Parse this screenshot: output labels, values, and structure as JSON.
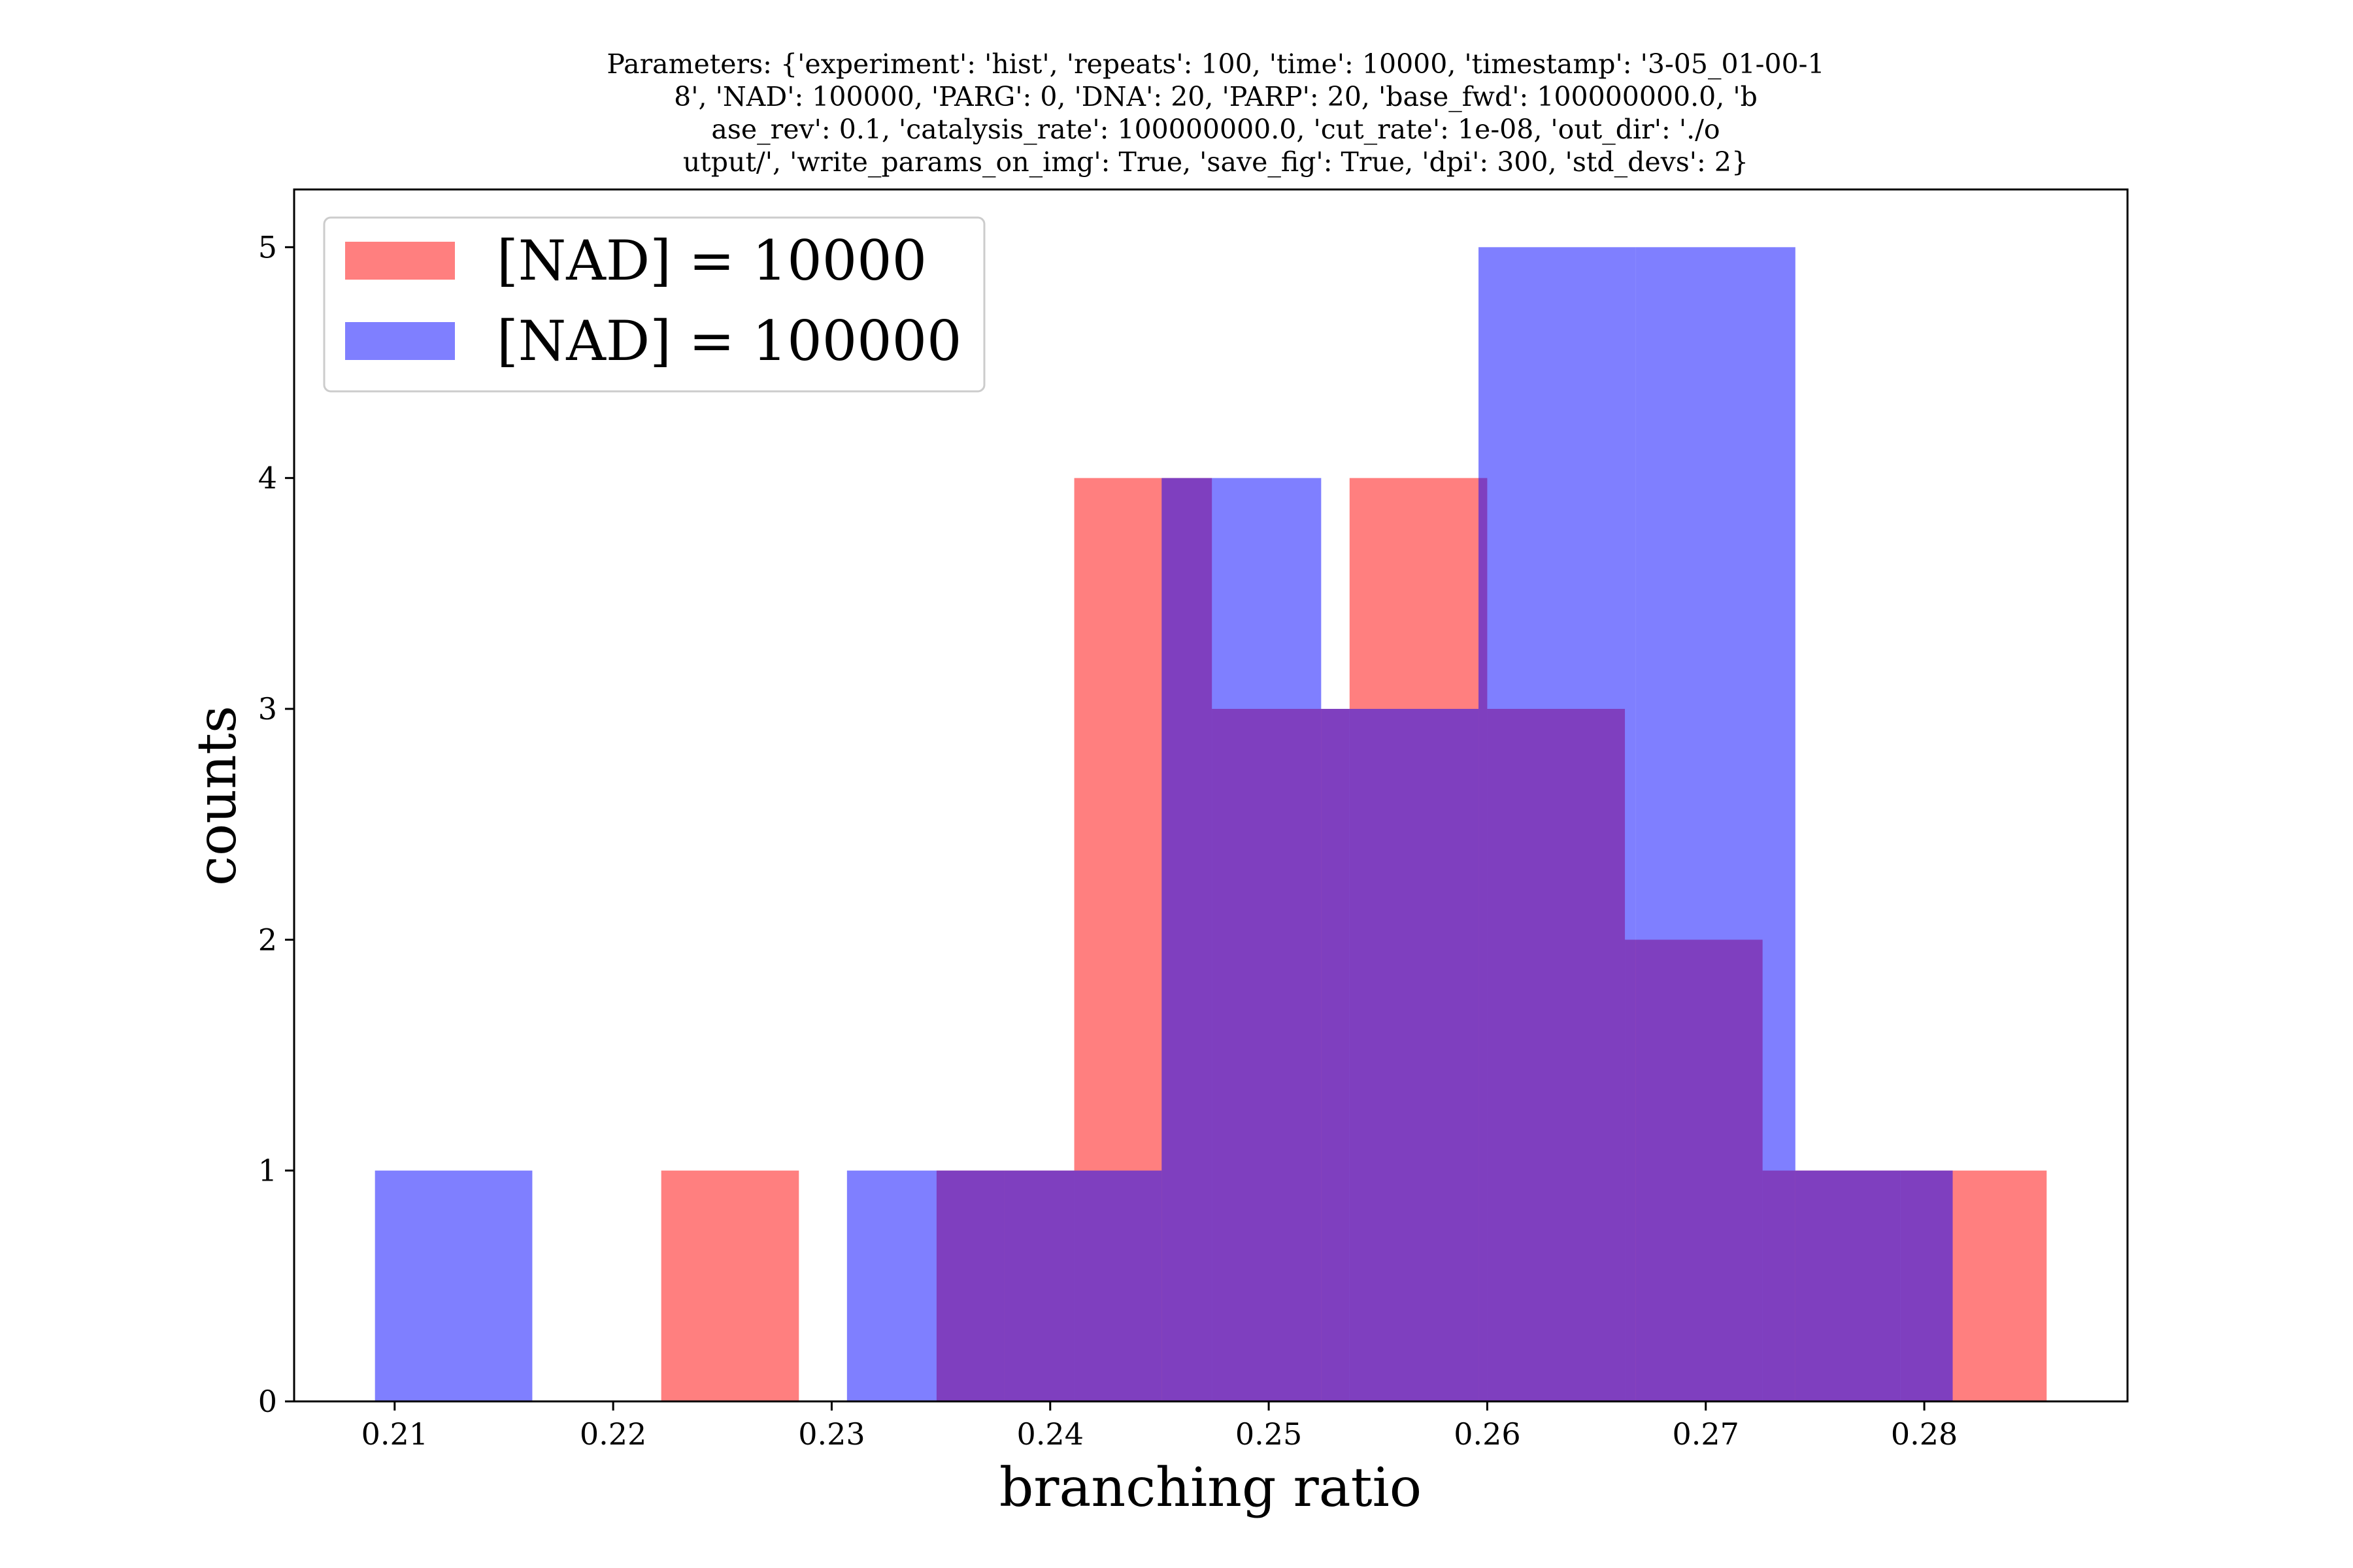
{
  "chart_data": {
    "type": "bar",
    "histogram": true,
    "title_lines": [
      "Parameters: {'experiment': 'hist', 'repeats': 100, 'time': 10000, 'timestamp': '3-05_01-00-1",
      "8', 'NAD': 100000, 'PARG': 0, 'DNA': 20, 'PARP': 20, 'base_fwd': 100000000.0, 'b",
      "ase_rev': 0.1, 'catalysis_rate': 100000000.0, 'cut_rate': 1e-08, 'out_dir': './o",
      "utput/', 'write_params_on_img': True, 'save_fig': True, 'dpi': 300, 'std_devs': 2}"
    ],
    "xlabel": "branching ratio",
    "ylabel": "counts",
    "xlim": [
      0.2054,
      0.2893
    ],
    "ylim": [
      0,
      5.25
    ],
    "xticks": [
      0.21,
      0.22,
      0.23,
      0.24,
      0.25,
      0.26,
      0.27,
      0.28
    ],
    "xtick_labels": [
      "0.21",
      "0.22",
      "0.23",
      "0.24",
      "0.25",
      "0.26",
      "0.27",
      "0.28"
    ],
    "yticks": [
      0,
      1,
      2,
      3,
      4,
      5
    ],
    "ytick_labels": [
      "0",
      "1",
      "2",
      "3",
      "4",
      "5"
    ],
    "legend_position": "upper-left",
    "grid": false,
    "series": [
      {
        "name": "[NAD] = 10000",
        "color": "#ff0000",
        "alpha": 0.5,
        "bin_edges": [
          0.2159,
          0.2222,
          0.2285,
          0.2348,
          0.2411,
          0.2474,
          0.2537,
          0.26,
          0.2663,
          0.2726,
          0.2789,
          0.2856
        ],
        "counts": [
          0,
          1,
          0,
          1,
          4,
          3,
          4,
          3,
          2,
          1,
          1
        ]
      },
      {
        "name": "[NAD] = 100000",
        "color": "#0000ff",
        "alpha": 0.5,
        "bin_edges": [
          0.2091,
          0.2163,
          0.2235,
          0.2307,
          0.2379,
          0.2451,
          0.2524,
          0.2596,
          0.2668,
          0.2741,
          0.2813
        ],
        "counts": [
          1,
          0,
          0,
          1,
          1,
          4,
          3,
          5,
          5,
          1
        ]
      }
    ]
  }
}
